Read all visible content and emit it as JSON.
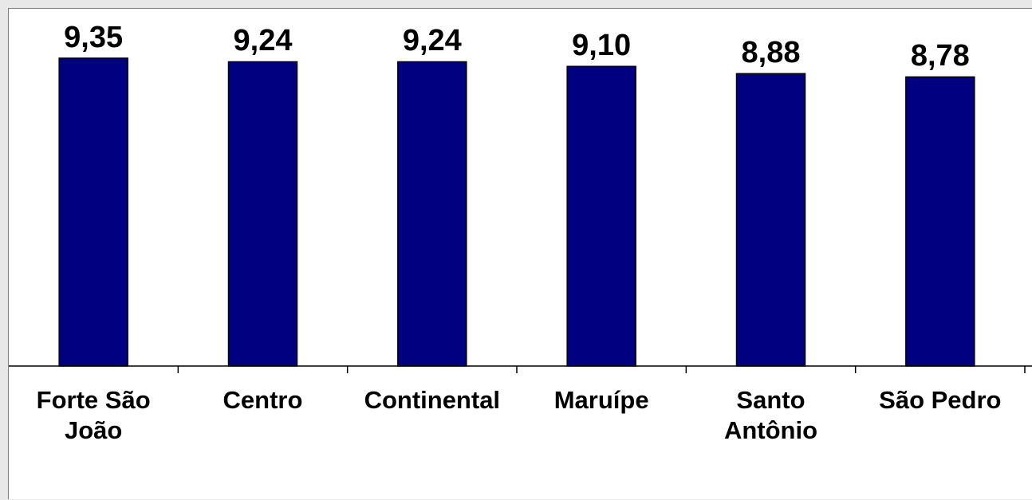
{
  "chart_data": {
    "type": "bar",
    "categories": [
      "Forte São\nJoão",
      "Centro",
      "Continental",
      "Maruípe",
      "Santo\nAntônio",
      "São Pedro"
    ],
    "values": [
      9.35,
      9.24,
      9.24,
      9.1,
      8.88,
      8.78
    ],
    "value_labels": [
      "9,35",
      "9,24",
      "9,24",
      "9,10",
      "8,88",
      "8,78"
    ],
    "color": "#000080",
    "ylim": [
      0,
      10.85
    ]
  }
}
